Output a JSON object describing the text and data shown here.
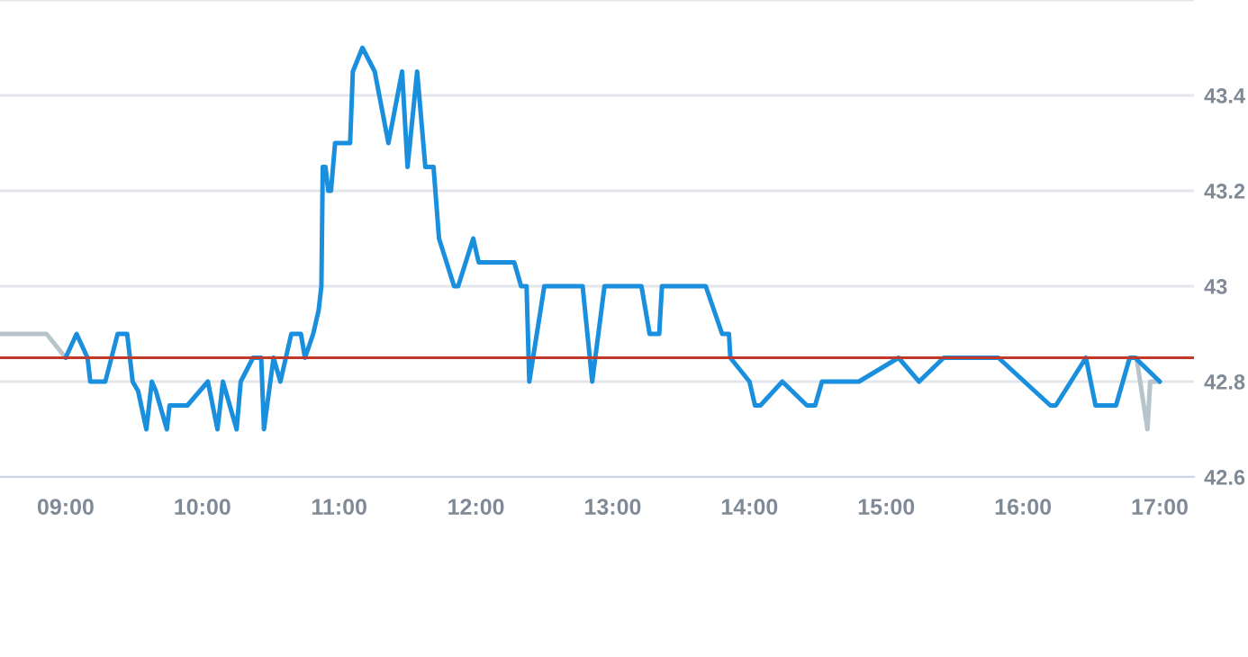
{
  "chart_data": {
    "type": "line",
    "xlim": [
      8.52,
      17.25
    ],
    "ylim": [
      42.6,
      43.6
    ],
    "xticks": [
      {
        "value": 9,
        "label": "09:00"
      },
      {
        "value": 10,
        "label": "10:00"
      },
      {
        "value": 11,
        "label": "11:00"
      },
      {
        "value": 12,
        "label": "12:00"
      },
      {
        "value": 13,
        "label": "13:00"
      },
      {
        "value": 14,
        "label": "14:00"
      },
      {
        "value": 15,
        "label": "15:00"
      },
      {
        "value": 16,
        "label": "16:00"
      },
      {
        "value": 17,
        "label": "17:00"
      }
    ],
    "yticks": [
      42.6,
      42.8,
      43,
      43.2,
      43.4,
      {
        "value": 43.6,
        "label": null
      }
    ],
    "grid": "y",
    "line_style": "solid",
    "marker": "none",
    "ref_lines": [
      {
        "axis": "y",
        "value": 42.85,
        "color": "#c0392b"
      }
    ],
    "series": [
      {
        "color": "#b8c4cc",
        "x": [
          8.52,
          8.86,
          9.0,
          12.0,
          16.83,
          16.91,
          16.93,
          17.0
        ],
        "values": [
          42.9,
          42.9,
          42.85,
          null,
          42.85,
          42.7,
          42.8,
          42.8
        ]
      },
      {
        "color": "#1a8fdd",
        "x": [
          9.0,
          9.08,
          9.16,
          9.18,
          9.29,
          9.38,
          9.45,
          9.49,
          9.53,
          9.59,
          9.63,
          9.66,
          9.74,
          9.76,
          9.89,
          10.04,
          10.11,
          10.15,
          10.25,
          10.28,
          10.37,
          10.43,
          10.45,
          10.52,
          10.57,
          10.65,
          10.72,
          10.75,
          10.81,
          10.85,
          10.87,
          10.88,
          10.9,
          10.92,
          10.94,
          10.97,
          11.08,
          11.1,
          11.17,
          11.26,
          11.36,
          11.46,
          11.5,
          11.57,
          11.63,
          11.69,
          11.73,
          11.84,
          11.87,
          11.98,
          12.02,
          12.28,
          12.33,
          12.37,
          12.39,
          12.5,
          12.78,
          12.85,
          12.94,
          13.21,
          13.27,
          13.34,
          13.36,
          13.68,
          13.8,
          13.85,
          13.86,
          14.0,
          14.04,
          14.08,
          14.24,
          14.42,
          14.48,
          14.53,
          14.8,
          15.09,
          15.24,
          15.42,
          15.82,
          16.2,
          16.24,
          16.46,
          16.53,
          16.68,
          16.78,
          16.82,
          17.0
        ],
        "values": [
          42.85,
          42.9,
          42.85,
          42.8,
          42.8,
          42.9,
          42.9,
          42.8,
          42.78,
          42.7,
          42.8,
          42.78,
          42.7,
          42.75,
          42.75,
          42.8,
          42.7,
          42.8,
          42.7,
          42.8,
          42.85,
          42.85,
          42.7,
          42.85,
          42.8,
          42.9,
          42.9,
          42.85,
          42.9,
          42.95,
          43.0,
          43.25,
          43.25,
          43.2,
          43.2,
          43.3,
          43.3,
          43.45,
          43.5,
          43.45,
          43.3,
          43.45,
          43.25,
          43.45,
          43.25,
          43.25,
          43.1,
          43.0,
          43.0,
          43.1,
          43.05,
          43.05,
          43.0,
          43.0,
          42.8,
          43.0,
          43.0,
          42.8,
          43.0,
          43.0,
          42.9,
          42.9,
          43.0,
          43.0,
          42.9,
          42.9,
          42.85,
          42.8,
          42.75,
          42.75,
          42.8,
          42.75,
          42.75,
          42.8,
          42.8,
          42.85,
          42.8,
          42.85,
          42.85,
          42.75,
          42.75,
          42.85,
          42.75,
          42.75,
          42.85,
          42.85,
          42.8
        ]
      }
    ]
  }
}
